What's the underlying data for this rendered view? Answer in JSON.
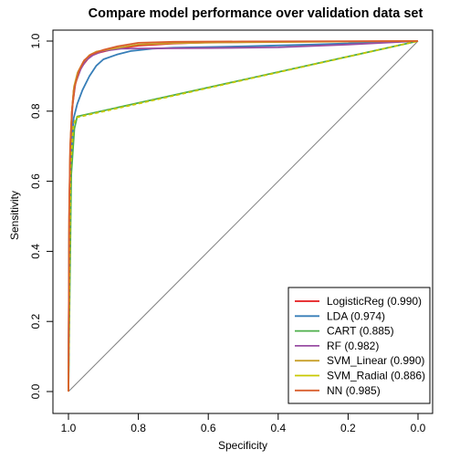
{
  "chart_data": {
    "type": "line",
    "title": "Compare model performance over validation data set",
    "xlabel": "Specificity",
    "ylabel": "Sensitivity",
    "xlim": [
      1.0,
      0.0
    ],
    "ylim": [
      0.0,
      1.0
    ],
    "x_ticks": [
      "1.0",
      "0.8",
      "0.6",
      "0.4",
      "0.2",
      "0.0"
    ],
    "y_ticks": [
      "0.0",
      "0.2",
      "0.4",
      "0.6",
      "0.8",
      "1.0"
    ],
    "grid": false,
    "legend_position": "bottom-right",
    "reference_line": {
      "from": [
        1.0,
        0.0
      ],
      "to": [
        0.0,
        1.0
      ],
      "color": "#808080"
    },
    "series": [
      {
        "name": "LogisticReg (0.990)",
        "color": "#e41a1c",
        "dashed": false,
        "points": [
          [
            1.0,
            0.0
          ],
          [
            0.998,
            0.5
          ],
          [
            0.995,
            0.68
          ],
          [
            0.99,
            0.8
          ],
          [
            0.985,
            0.86
          ],
          [
            0.975,
            0.9
          ],
          [
            0.96,
            0.93
          ],
          [
            0.94,
            0.955
          ],
          [
            0.92,
            0.965
          ],
          [
            0.88,
            0.975
          ],
          [
            0.85,
            0.98
          ],
          [
            0.8,
            0.987
          ],
          [
            0.7,
            0.993
          ],
          [
            0.6,
            0.996
          ],
          [
            0.4,
            0.998
          ],
          [
            0.0,
            1.0
          ]
        ]
      },
      {
        "name": "LDA (0.974)",
        "color": "#377eb8",
        "dashed": false,
        "points": [
          [
            1.0,
            0.0
          ],
          [
            0.998,
            0.45
          ],
          [
            0.994,
            0.63
          ],
          [
            0.99,
            0.72
          ],
          [
            0.985,
            0.78
          ],
          [
            0.975,
            0.82
          ],
          [
            0.96,
            0.86
          ],
          [
            0.94,
            0.9
          ],
          [
            0.92,
            0.93
          ],
          [
            0.9,
            0.948
          ],
          [
            0.86,
            0.962
          ],
          [
            0.82,
            0.972
          ],
          [
            0.76,
            0.978
          ],
          [
            0.7,
            0.981
          ],
          [
            0.5,
            0.985
          ],
          [
            0.3,
            0.99
          ],
          [
            0.0,
            1.0
          ]
        ]
      },
      {
        "name": "CART (0.885)",
        "color": "#4daf4a",
        "dashed": false,
        "points": [
          [
            1.0,
            0.0
          ],
          [
            0.992,
            0.62
          ],
          [
            0.983,
            0.75
          ],
          [
            0.975,
            0.785
          ],
          [
            0.0,
            1.0
          ]
        ]
      },
      {
        "name": "RF (0.982)",
        "color": "#984ea3",
        "dashed": false,
        "points": [
          [
            1.0,
            0.0
          ],
          [
            0.997,
            0.55
          ],
          [
            0.993,
            0.72
          ],
          [
            0.988,
            0.82
          ],
          [
            0.98,
            0.88
          ],
          [
            0.965,
            0.92
          ],
          [
            0.95,
            0.945
          ],
          [
            0.93,
            0.96
          ],
          [
            0.9,
            0.972
          ],
          [
            0.85,
            0.978
          ],
          [
            0.8,
            0.979
          ],
          [
            0.6,
            0.98
          ],
          [
            0.4,
            0.982
          ],
          [
            0.2,
            0.99
          ],
          [
            0.0,
            1.0
          ]
        ]
      },
      {
        "name": "SVM_Linear (0.990)",
        "color": "#c8a02a",
        "dashed": false,
        "points": [
          [
            1.0,
            0.0
          ],
          [
            0.998,
            0.5
          ],
          [
            0.995,
            0.7
          ],
          [
            0.99,
            0.8
          ],
          [
            0.984,
            0.87
          ],
          [
            0.974,
            0.91
          ],
          [
            0.958,
            0.94
          ],
          [
            0.94,
            0.96
          ],
          [
            0.92,
            0.97
          ],
          [
            0.88,
            0.977
          ],
          [
            0.85,
            0.982
          ],
          [
            0.8,
            0.99
          ],
          [
            0.7,
            0.994
          ],
          [
            0.55,
            0.996
          ],
          [
            0.3,
            0.998
          ],
          [
            0.0,
            1.0
          ]
        ]
      },
      {
        "name": "SVM_Radial (0.886)",
        "color": "#c8c800",
        "dashed": true,
        "points": [
          [
            1.0,
            0.0
          ],
          [
            0.994,
            0.64
          ],
          [
            0.986,
            0.76
          ],
          [
            0.977,
            0.782
          ],
          [
            0.0,
            1.0
          ]
        ]
      },
      {
        "name": "NN (0.985)",
        "color": "#d95f2e",
        "dashed": false,
        "points": [
          [
            1.0,
            0.0
          ],
          [
            0.998,
            0.52
          ],
          [
            0.995,
            0.7
          ],
          [
            0.99,
            0.8
          ],
          [
            0.982,
            0.87
          ],
          [
            0.97,
            0.915
          ],
          [
            0.955,
            0.945
          ],
          [
            0.935,
            0.962
          ],
          [
            0.9,
            0.975
          ],
          [
            0.86,
            0.985
          ],
          [
            0.8,
            0.995
          ],
          [
            0.7,
            0.998
          ],
          [
            0.5,
            0.999
          ],
          [
            0.0,
            1.0
          ]
        ]
      }
    ]
  }
}
